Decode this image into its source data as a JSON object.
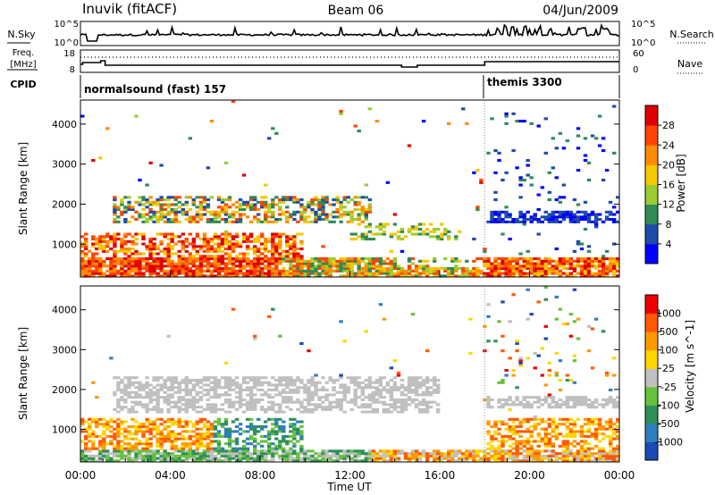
{
  "header": {
    "station": "Inuvik (fitACF)",
    "beam": "Beam 06",
    "date": "04/Jun/2009"
  },
  "chart_data": [
    {
      "type": "line",
      "left_label": "N.Sky",
      "right_label": "N.Search",
      "left_ticks": [
        "10^5",
        "10^0"
      ],
      "right_ticks": [
        "10^5",
        "10^0"
      ]
    },
    {
      "type": "line",
      "left_label_top": "Freq.",
      "left_label_bottom": "[MHz]",
      "right_label": "Nave",
      "left_ticks": [
        "18",
        "8"
      ],
      "right_ticks": [
        "60",
        "0"
      ]
    },
    {
      "type": "table",
      "label": "CPID",
      "segments": [
        {
          "name": "normalsound (fast) 157",
          "start_hour": 0
        },
        {
          "name": "themis 3300",
          "start_hour": 18
        }
      ]
    },
    {
      "type": "heatmap",
      "ylabel": "Slant Range [km]",
      "yticks": [
        "1000",
        "2000",
        "3000",
        "4000"
      ],
      "ylim": [
        180,
        4600
      ],
      "colorbar_label": "Power [dB]",
      "colorbar_ticks": [
        "28",
        "24",
        "20",
        "16",
        "12",
        "8",
        "4"
      ],
      "colors": [
        "#0000ff",
        "#1e4ca8",
        "#2e8b57",
        "#9acd32",
        "#f5c800",
        "#ff8c00",
        "#ff4500",
        "#e00000"
      ]
    },
    {
      "type": "heatmap",
      "ylabel": "Slant Range [km]",
      "yticks": [
        "1000",
        "2000",
        "3000",
        "4000"
      ],
      "ylim": [
        180,
        4600
      ],
      "xlabel": "Time UT",
      "xticks": [
        "00:00",
        "04:00",
        "08:00",
        "12:00",
        "16:00",
        "20:00",
        "00:00"
      ],
      "xlim": [
        0,
        24
      ],
      "colorbar_label": "Velocity [m s^-1]",
      "colorbar_ticks": [
        "1000",
        "500",
        "100",
        "25",
        "-25",
        "-100",
        "-500",
        "-1000"
      ],
      "colors": [
        "#1a4bb5",
        "#2e7fbf",
        "#2f8f5a",
        "#66c23d",
        "#c0c0c0",
        "#ffd700",
        "#ff9900",
        "#ff5a00",
        "#ee0000"
      ]
    }
  ]
}
